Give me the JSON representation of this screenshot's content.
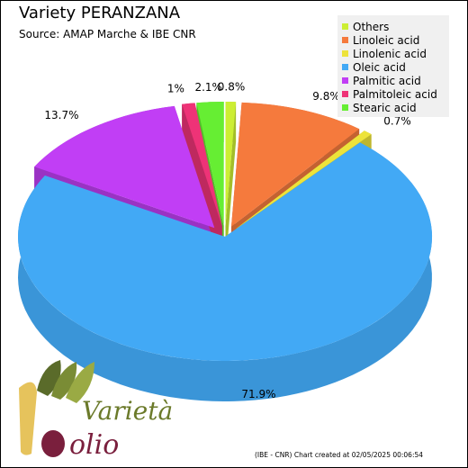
{
  "title": "Variety PERANZANA",
  "subtitle": "Source: AMAP Marche & IBE CNR",
  "credit": "(IBE - CNR) Chart created at 02/05/2025 00:06:54",
  "logo": {
    "word_top": "Varietà",
    "word_bottom": "olio"
  },
  "chart_data": {
    "type": "pie",
    "title": "Variety PERANZANA",
    "subtitle": "Source: AMAP Marche & IBE CNR",
    "legend_position": "top-right",
    "exploded": true,
    "three_d": true,
    "slices": [
      {
        "name": "Others",
        "value": 0.8,
        "label": "0.8%",
        "color": "#ccee33"
      },
      {
        "name": "Linoleic acid",
        "value": 9.8,
        "label": "9.8%",
        "color": "#f57a3d"
      },
      {
        "name": "Linolenic acid",
        "value": 0.7,
        "label": "0.7%",
        "color": "#ede33a"
      },
      {
        "name": "Oleic acid",
        "value": 71.9,
        "label": "71.9%",
        "color": "#42a9f5"
      },
      {
        "name": "Palmitic acid",
        "value": 13.7,
        "label": "13.7%",
        "color": "#c13ef5"
      },
      {
        "name": "Palmitoleic acid",
        "value": 1.0,
        "label": "1%",
        "color": "#ee3377"
      },
      {
        "name": "Stearic acid",
        "value": 2.1,
        "label": "2.1%",
        "color": "#66ee33"
      }
    ]
  }
}
